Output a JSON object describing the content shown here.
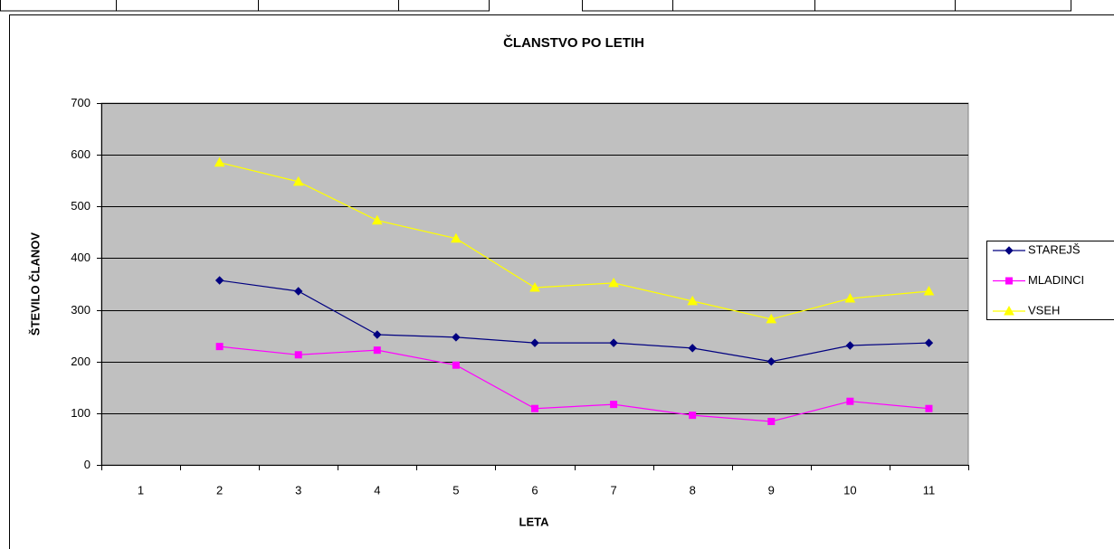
{
  "chart_data": {
    "type": "line",
    "title": "ČLANSTVO PO  LETIH",
    "x_label": "LETA",
    "y_label": "ŠTEVILO ČLANOV",
    "categories": [
      "1",
      "2",
      "3",
      "4",
      "5",
      "6",
      "7",
      "8",
      "9",
      "10",
      "11"
    ],
    "series": [
      {
        "name": "STAREJŠ",
        "color": "#000080",
        "marker": "diamond",
        "values": [
          null,
          357,
          336,
          252,
          247,
          236,
          236,
          226,
          200,
          231,
          236
        ]
      },
      {
        "name": "MLADINCI",
        "color": "#ff00ff",
        "marker": "square",
        "values": [
          null,
          229,
          213,
          222,
          193,
          109,
          117,
          96,
          84,
          123,
          109
        ]
      },
      {
        "name": "VSEH",
        "color": "#ffff00",
        "marker": "triangle",
        "values": [
          null,
          585,
          548,
          473,
          438,
          343,
          352,
          317,
          282,
          322,
          336
        ]
      }
    ],
    "ylim": [
      0,
      700
    ],
    "yticks": [
      0,
      100,
      200,
      300,
      400,
      500,
      600,
      700
    ],
    "grid": true,
    "plot_background": "#c0c0c0",
    "legend": "right"
  }
}
